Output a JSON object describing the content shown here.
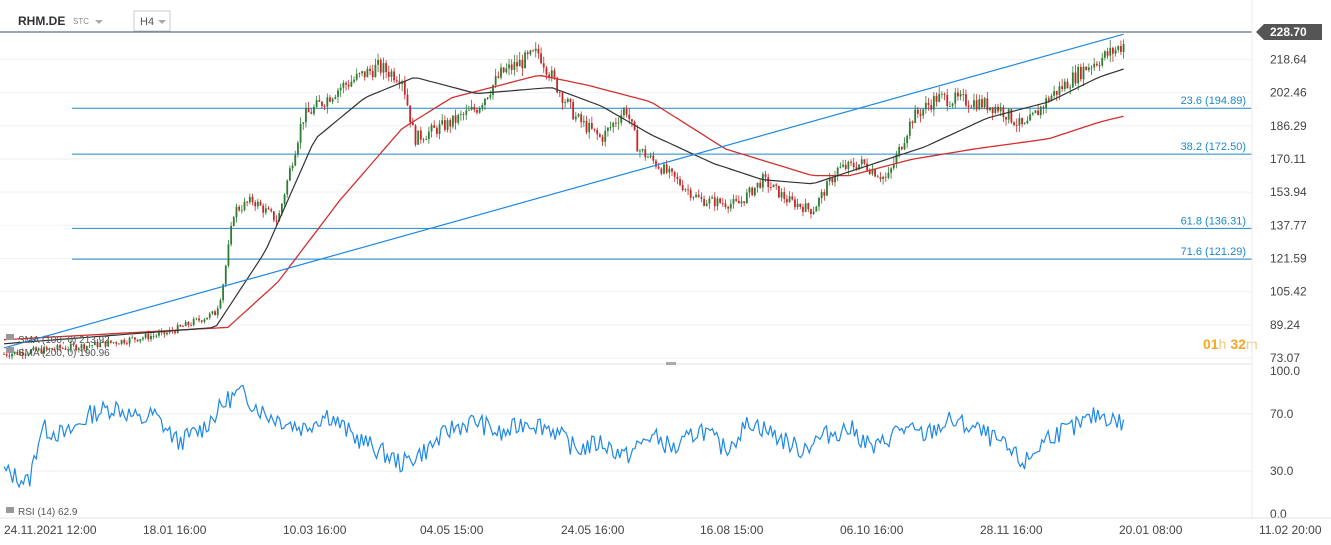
{
  "header": {
    "symbol": "RHM.DE",
    "type_label": "STC",
    "interval": "H4"
  },
  "price_panel": {
    "current_price_label": "228.70",
    "y_tick_labels": [
      "218.64",
      "202.46",
      "186.29",
      "170.11",
      "153.94",
      "137.77",
      "121.59",
      "105.42",
      "89.24",
      "73.07"
    ],
    "y_ticks": [
      218.64,
      202.46,
      186.29,
      170.11,
      153.94,
      137.77,
      121.59,
      105.42,
      89.24,
      73.07
    ],
    "countdown": {
      "hours": "01",
      "h_unit": "h",
      "minutes": "32",
      "m_unit": "m"
    },
    "legend": {
      "sma100": "SMA (100, 0) 213.92",
      "sma200": "SMA (200, 0) 190.96"
    }
  },
  "rsi_panel": {
    "label": "RSI (14) 62.9",
    "y_tick_labels": [
      "100.0",
      "70.0",
      "30.0",
      "0.0"
    ],
    "y_ticks": [
      100,
      70,
      30,
      0
    ]
  },
  "time_axis": {
    "labels": [
      "24.11.2021 12:00",
      "18.01 16:00",
      "10.03 16:00",
      "04.05 15:00",
      "24.05 16:00",
      "16.08 15:00",
      "06.10 16:00",
      "28.11 16:00",
      "20.01 08:00",
      "11.02 20:00"
    ]
  },
  "colors": {
    "sma100": "#333333",
    "sma200": "#d32f2f",
    "trendline": "#1e88e5",
    "fib": "#1e88c8",
    "up_candle": "#2e7d32",
    "down_candle": "#c62828",
    "rsi": "#1e88e5",
    "countdown_hours": "#f5a623",
    "price_badge_bg": "#555555"
  },
  "chart_data": [
    {
      "type": "line",
      "title": "RHM.DE H4",
      "y_range": [
        73.07,
        234
      ],
      "fib_levels": [
        {
          "label": "23.6 (194.89)",
          "value": 194.89
        },
        {
          "label": "38.2 (172.50)",
          "value": 172.5
        },
        {
          "label": "61.8 (136.31)",
          "value": 136.31
        },
        {
          "label": "71.6 (121.29)",
          "value": 121.29
        }
      ],
      "last_price": 228.7,
      "price_anchors": [
        [
          0,
          75
        ],
        [
          0.08,
          80
        ],
        [
          0.13,
          85
        ],
        [
          0.17,
          95
        ],
        [
          0.175,
          105
        ],
        [
          0.185,
          145
        ],
        [
          0.2,
          150
        ],
        [
          0.22,
          140
        ],
        [
          0.24,
          190
        ],
        [
          0.27,
          205
        ],
        [
          0.3,
          215
        ],
        [
          0.32,
          210
        ],
        [
          0.33,
          180
        ],
        [
          0.36,
          188
        ],
        [
          0.38,
          195
        ],
        [
          0.4,
          212
        ],
        [
          0.43,
          222
        ],
        [
          0.445,
          205
        ],
        [
          0.46,
          190
        ],
        [
          0.48,
          180
        ],
        [
          0.5,
          195
        ],
        [
          0.51,
          175
        ],
        [
          0.53,
          165
        ],
        [
          0.56,
          150
        ],
        [
          0.59,
          148
        ],
        [
          0.61,
          160
        ],
        [
          0.63,
          150
        ],
        [
          0.65,
          145
        ],
        [
          0.67,
          165
        ],
        [
          0.69,
          168
        ],
        [
          0.71,
          160
        ],
        [
          0.73,
          190
        ],
        [
          0.75,
          200
        ],
        [
          0.78,
          198
        ],
        [
          0.8,
          195
        ],
        [
          0.82,
          185
        ],
        [
          0.84,
          200
        ],
        [
          0.87,
          215
        ],
        [
          0.89,
          222
        ],
        [
          0.9,
          226
        ]
      ],
      "sma200_anchors": [
        [
          0,
          82
        ],
        [
          0.18,
          88
        ],
        [
          0.22,
          110
        ],
        [
          0.27,
          150
        ],
        [
          0.32,
          185
        ],
        [
          0.36,
          200
        ],
        [
          0.43,
          211
        ],
        [
          0.47,
          206
        ],
        [
          0.52,
          198
        ],
        [
          0.58,
          175
        ],
        [
          0.65,
          162
        ],
        [
          0.68,
          162
        ],
        [
          0.73,
          170
        ],
        [
          0.78,
          175
        ],
        [
          0.84,
          180
        ],
        [
          0.88,
          188
        ],
        [
          0.9,
          191
        ]
      ],
      "sma100_anchors": [
        [
          0,
          80
        ],
        [
          0.17,
          88
        ],
        [
          0.21,
          125
        ],
        [
          0.25,
          180
        ],
        [
          0.29,
          200
        ],
        [
          0.33,
          210
        ],
        [
          0.38,
          202
        ],
        [
          0.44,
          205
        ],
        [
          0.48,
          196
        ],
        [
          0.52,
          182
        ],
        [
          0.57,
          168
        ],
        [
          0.61,
          160
        ],
        [
          0.65,
          158
        ],
        [
          0.69,
          166
        ],
        [
          0.74,
          176
        ],
        [
          0.79,
          190
        ],
        [
          0.84,
          198
        ],
        [
          0.88,
          210
        ],
        [
          0.9,
          214
        ]
      ],
      "trendline": {
        "start": [
          0,
          78
        ],
        "end": [
          0.9,
          231
        ]
      }
    },
    {
      "type": "line",
      "title": "RSI (14)",
      "y_range": [
        0,
        100
      ],
      "rsi_anchors": [
        [
          0,
          30
        ],
        [
          0.02,
          22
        ],
        [
          0.03,
          60
        ],
        [
          0.05,
          55
        ],
        [
          0.07,
          70
        ],
        [
          0.09,
          75
        ],
        [
          0.11,
          65
        ],
        [
          0.12,
          70
        ],
        [
          0.14,
          50
        ],
        [
          0.16,
          60
        ],
        [
          0.18,
          80
        ],
        [
          0.19,
          85
        ],
        [
          0.21,
          70
        ],
        [
          0.24,
          60
        ],
        [
          0.26,
          70
        ],
        [
          0.28,
          55
        ],
        [
          0.3,
          45
        ],
        [
          0.32,
          35
        ],
        [
          0.34,
          45
        ],
        [
          0.36,
          60
        ],
        [
          0.38,
          65
        ],
        [
          0.4,
          55
        ],
        [
          0.42,
          65
        ],
        [
          0.44,
          60
        ],
        [
          0.46,
          45
        ],
        [
          0.48,
          50
        ],
        [
          0.5,
          40
        ],
        [
          0.52,
          55
        ],
        [
          0.54,
          45
        ],
        [
          0.56,
          60
        ],
        [
          0.58,
          45
        ],
        [
          0.6,
          65
        ],
        [
          0.62,
          55
        ],
        [
          0.64,
          45
        ],
        [
          0.66,
          55
        ],
        [
          0.68,
          60
        ],
        [
          0.7,
          45
        ],
        [
          0.72,
          60
        ],
        [
          0.74,
          55
        ],
        [
          0.76,
          65
        ],
        [
          0.78,
          60
        ],
        [
          0.8,
          50
        ],
        [
          0.82,
          35
        ],
        [
          0.84,
          55
        ],
        [
          0.86,
          60
        ],
        [
          0.88,
          70
        ],
        [
          0.9,
          63
        ]
      ]
    }
  ]
}
